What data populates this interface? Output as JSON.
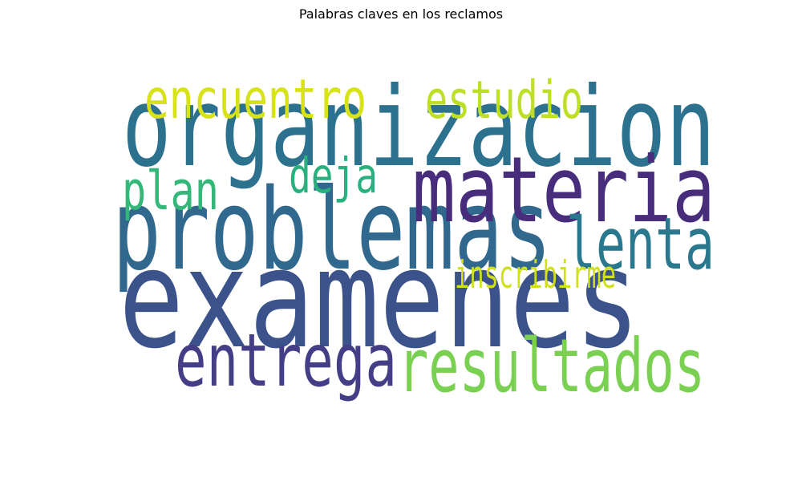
{
  "chart_data": {
    "type": "wordcloud",
    "title": "Palabras claves en los reclamos",
    "words": [
      {
        "text": "examenes",
        "weight": 1.0,
        "color": "#3b528b"
      },
      {
        "text": "organizacion",
        "weight": 0.78,
        "color": "#2c728e"
      },
      {
        "text": "problemas",
        "weight": 0.8,
        "color": "#31688e"
      },
      {
        "text": "materia",
        "weight": 0.62,
        "color": "#472d7b"
      },
      {
        "text": "resultados",
        "weight": 0.48,
        "color": "#7ad151"
      },
      {
        "text": "entrega",
        "weight": 0.47,
        "color": "#433e85"
      },
      {
        "text": "lenta",
        "weight": 0.46,
        "color": "#2a788e"
      },
      {
        "text": "encuentro",
        "weight": 0.32,
        "color": "#d8e219"
      },
      {
        "text": "estudio",
        "weight": 0.3,
        "color": "#bddf26"
      },
      {
        "text": "plan",
        "weight": 0.31,
        "color": "#35b779"
      },
      {
        "text": "deja",
        "weight": 0.27,
        "color": "#2ab07f"
      },
      {
        "text": "inscribirme",
        "weight": 0.18,
        "color": "#d0e11c"
      }
    ]
  }
}
